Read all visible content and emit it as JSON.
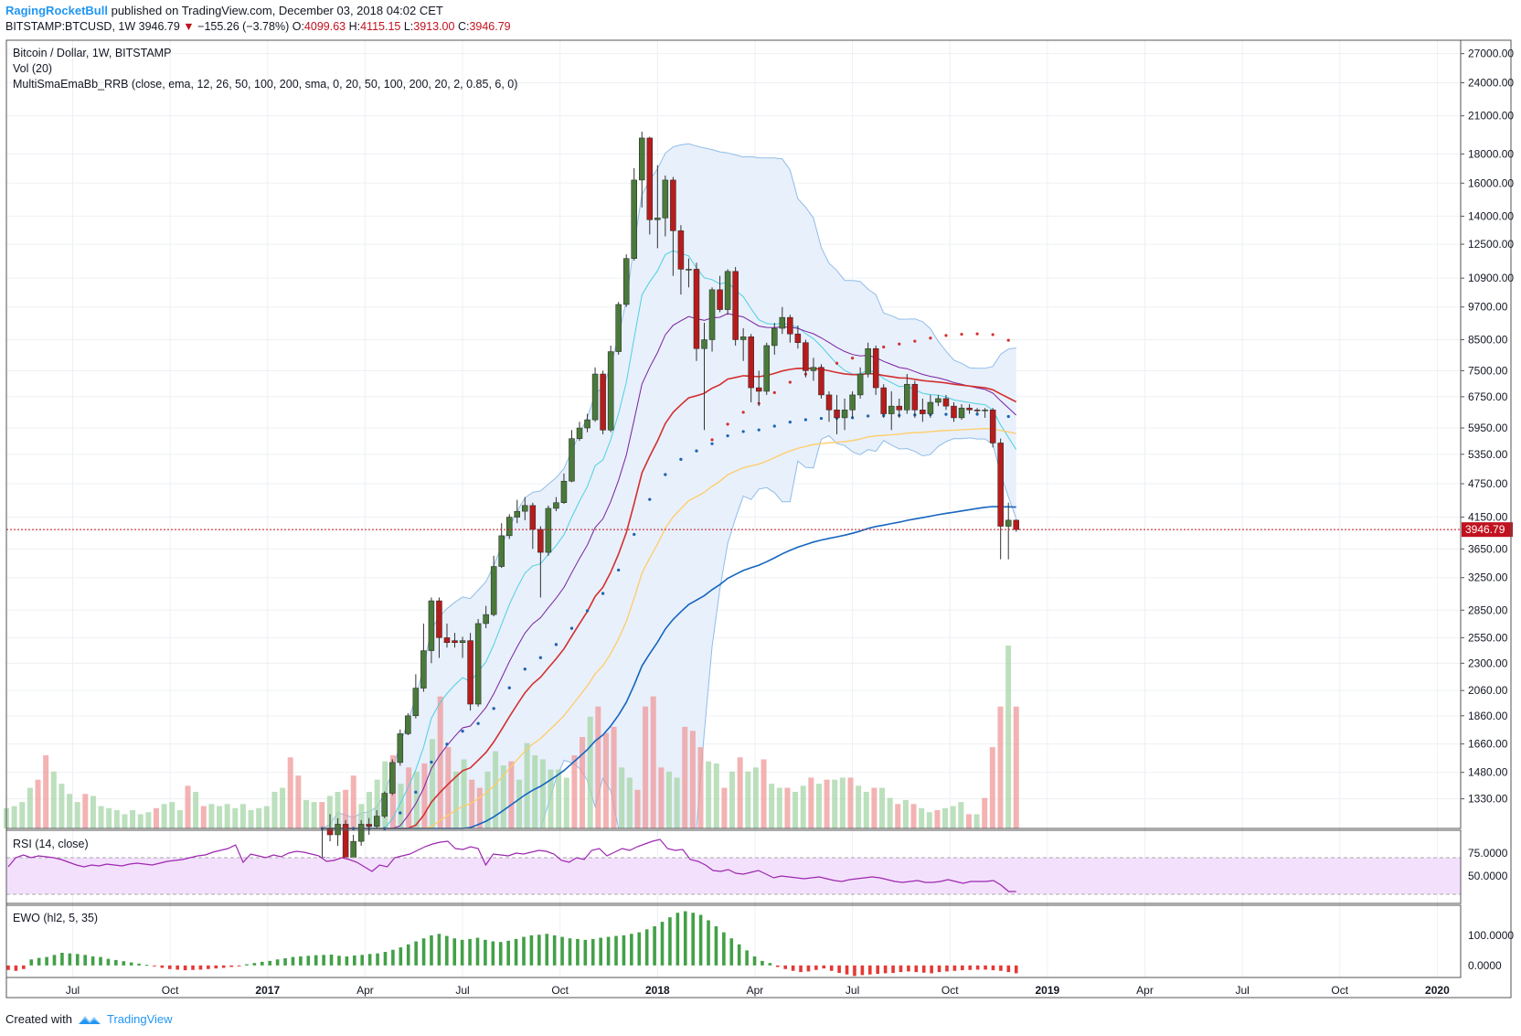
{
  "header": {
    "author": "RagingRocketBull",
    "published_text": "published on TradingView.com, December 03, 2018 04:02 CET",
    "symbol": "BITSTAMP:BTCUSD, 1W",
    "last_price": "3946.79",
    "change_arrow": "▼",
    "change": "−155.26 (−3.78%)",
    "o_label": "O:",
    "o_value": "4099.63",
    "h_label": "H:",
    "h_value": "4115.15",
    "l_label": "L:",
    "l_value": "3913.00",
    "c_label": "C:",
    "c_value": "3946.79"
  },
  "legend": {
    "line1": "Bitcoin / Dollar, 1W, BITSTAMP",
    "line2": "Vol (20)",
    "line3": "MultiSmaEmaBb_RRB (close, ema, 12, 26, 50, 100, 200, sma, 0, 20, 50, 100, 200, 20, 2, 0.85, 6, 0)"
  },
  "rsi_label": "RSI (14, close)",
  "ewo_label": "EWO (hl2, 5, 35)",
  "footer": {
    "created_with": "Created with",
    "brand": "TradingView"
  },
  "colors": {
    "up": "#4a7a3a",
    "down": "#b71c1c",
    "vol_up": "#a5d6a7",
    "vol_down": "#ef9a9a",
    "ema12": "#4dd0e1",
    "ema26": "#7b1fa2",
    "ema50": "#d32f2f",
    "ema100": "#ffcc66",
    "ema200": "#1565c0",
    "bb": "#90bde8",
    "bb_fill": "#e8f0fb",
    "rsi": "#9c27b0",
    "rsi_band": "#f3e0fc",
    "ewo_pos": "#43a047",
    "ewo_neg": "#e53935",
    "price_line": "#c1121f"
  },
  "chart_data": [
    {
      "type": "candlestick",
      "title": "Bitcoin / Dollar, 1W, BITSTAMP",
      "scale": "log",
      "ylim": [
        1180,
        28500
      ],
      "y_ticks": [
        "27000.00",
        "24000.00",
        "21000.00",
        "18000.00",
        "16000.00",
        "14000.00",
        "12500.00",
        "10900.00",
        "9700.00",
        "8500.00",
        "7500.00",
        "6750.00",
        "5950.00",
        "5350.00",
        "4750.00",
        "4150.00",
        "3650.00",
        "3250.00",
        "2850.00",
        "2550.00",
        "2300.00",
        "2060.00",
        "1860.00",
        "1660.00",
        "1480.00",
        "1330.00"
      ],
      "x_ticks": [
        {
          "label": "Jul",
          "t": 2016.5
        },
        {
          "label": "Oct",
          "t": 2016.75
        },
        {
          "label": "2017",
          "t": 2017.0
        },
        {
          "label": "Apr",
          "t": 2017.25
        },
        {
          "label": "Jul",
          "t": 2017.5
        },
        {
          "label": "Oct",
          "t": 2017.75
        },
        {
          "label": "2018",
          "t": 2018.0
        },
        {
          "label": "Apr",
          "t": 2018.25
        },
        {
          "label": "Jul",
          "t": 2018.5
        },
        {
          "label": "Oct",
          "t": 2018.75
        },
        {
          "label": "2019",
          "t": 2019.0
        },
        {
          "label": "Apr",
          "t": 2019.25
        },
        {
          "label": "Jul",
          "t": 2019.5
        },
        {
          "label": "Oct",
          "t": 2019.75
        },
        {
          "label": "2020",
          "t": 2020.0
        }
      ],
      "last_price": 3946.79,
      "last_price_label": "3946.79",
      "candles": [
        [
          2017.14,
          1000,
          1050,
          980,
          1180
        ],
        [
          2017.16,
          1180,
          1150,
          1120,
          1250
        ],
        [
          2017.18,
          1150,
          1200,
          1100,
          1230
        ],
        [
          2017.2,
          1200,
          1040,
          1000,
          1220
        ],
        [
          2017.22,
          1040,
          1120,
          1000,
          1150
        ],
        [
          2017.24,
          1120,
          1200,
          1100,
          1220
        ],
        [
          2017.26,
          1200,
          1190,
          1150,
          1230
        ],
        [
          2017.28,
          1190,
          1240,
          1180,
          1270
        ],
        [
          2017.3,
          1240,
          1360,
          1230,
          1370
        ],
        [
          2017.32,
          1360,
          1540,
          1350,
          1560
        ],
        [
          2017.34,
          1540,
          1730,
          1520,
          1760
        ],
        [
          2017.36,
          1730,
          1860,
          1720,
          1880
        ],
        [
          2017.38,
          1860,
          2080,
          1840,
          2200
        ],
        [
          2017.4,
          2080,
          2420,
          2050,
          2700
        ],
        [
          2017.42,
          2420,
          2960,
          2300,
          3000
        ],
        [
          2017.44,
          2960,
          2550,
          2350,
          3000
        ],
        [
          2017.46,
          2550,
          2500,
          2450,
          2700
        ],
        [
          2017.48,
          2520,
          2500,
          2450,
          2600
        ],
        [
          2017.5,
          2500,
          2520,
          2350,
          2560
        ],
        [
          2017.52,
          2520,
          1950,
          1900,
          2600
        ],
        [
          2017.54,
          1950,
          2700,
          1930,
          2750
        ],
        [
          2017.56,
          2700,
          2800,
          2650,
          2900
        ],
        [
          2017.58,
          2800,
          3400,
          2780,
          3550
        ],
        [
          2017.6,
          3400,
          3850,
          3380,
          4050
        ],
        [
          2017.62,
          3850,
          4150,
          3800,
          4200
        ],
        [
          2017.64,
          4150,
          4250,
          4050,
          4450
        ],
        [
          2017.66,
          4250,
          4350,
          4100,
          4500
        ],
        [
          2017.68,
          4350,
          3950,
          3650,
          4400
        ],
        [
          2017.7,
          3950,
          3600,
          3000,
          4000
        ],
        [
          2017.72,
          3600,
          4300,
          3550,
          4350
        ],
        [
          2017.74,
          4300,
          4400,
          4250,
          4500
        ],
        [
          2017.76,
          4400,
          4800,
          4380,
          4950
        ],
        [
          2017.78,
          4800,
          5700,
          4780,
          5900
        ],
        [
          2017.8,
          5700,
          5950,
          5650,
          6100
        ],
        [
          2017.82,
          5950,
          6150,
          5850,
          6300
        ],
        [
          2017.84,
          6150,
          7400,
          6100,
          7600
        ],
        [
          2017.86,
          7400,
          5900,
          5800,
          7500
        ],
        [
          2017.88,
          5900,
          8100,
          5850,
          8300
        ],
        [
          2017.9,
          8100,
          9800,
          8000,
          9900
        ],
        [
          2017.92,
          9800,
          11800,
          9700,
          12000
        ],
        [
          2017.94,
          11800,
          16200,
          11700,
          17000
        ],
        [
          2017.96,
          16200,
          19200,
          14500,
          19700
        ],
        [
          2017.98,
          19200,
          13800,
          13000,
          19300
        ],
        [
          2018.0,
          13800,
          13900,
          12300,
          17200
        ],
        [
          2018.02,
          13900,
          16200,
          12900,
          16500
        ],
        [
          2018.04,
          16200,
          13200,
          11000,
          16400
        ],
        [
          2018.06,
          13200,
          11300,
          10200,
          13500
        ],
        [
          2018.08,
          11300,
          11300,
          10500,
          11800
        ],
        [
          2018.1,
          11300,
          8200,
          7800,
          11600
        ],
        [
          2018.12,
          8200,
          8500,
          5900,
          9100
        ],
        [
          2018.14,
          8500,
          10400,
          8100,
          10500
        ],
        [
          2018.16,
          10400,
          9600,
          9500,
          11000
        ],
        [
          2018.18,
          9600,
          11200,
          9400,
          11300
        ],
        [
          2018.2,
          11200,
          8500,
          8300,
          11400
        ],
        [
          2018.22,
          8500,
          8600,
          7800,
          8900
        ],
        [
          2018.24,
          8600,
          7000,
          6600,
          8700
        ],
        [
          2018.26,
          7000,
          6900,
          6500,
          7500
        ],
        [
          2018.28,
          6900,
          8300,
          6800,
          8400
        ],
        [
          2018.3,
          8300,
          8900,
          8000,
          9100
        ],
        [
          2018.32,
          8900,
          9300,
          8700,
          9700
        ],
        [
          2018.34,
          9300,
          8700,
          8400,
          9400
        ],
        [
          2018.36,
          8700,
          8400,
          8200,
          9000
        ],
        [
          2018.38,
          8400,
          7500,
          7300,
          8500
        ],
        [
          2018.4,
          7500,
          7600,
          7200,
          7900
        ],
        [
          2018.42,
          7600,
          6800,
          6700,
          7700
        ],
        [
          2018.44,
          6800,
          6400,
          6100,
          6900
        ],
        [
          2018.46,
          6400,
          6200,
          5800,
          6800
        ],
        [
          2018.48,
          6200,
          6400,
          5900,
          6700
        ],
        [
          2018.5,
          6400,
          6800,
          6200,
          6900
        ],
        [
          2018.52,
          6800,
          7400,
          6700,
          7600
        ],
        [
          2018.54,
          7400,
          8200,
          7300,
          8400
        ],
        [
          2018.56,
          8200,
          7000,
          6800,
          8300
        ],
        [
          2018.58,
          7000,
          6300,
          6200,
          7100
        ],
        [
          2018.6,
          6300,
          6500,
          5900,
          6900
        ],
        [
          2018.62,
          6500,
          6400,
          6200,
          6700
        ],
        [
          2018.64,
          6400,
          7100,
          6300,
          7400
        ],
        [
          2018.66,
          7100,
          6400,
          6200,
          7200
        ],
        [
          2018.68,
          6400,
          6300,
          6100,
          6700
        ],
        [
          2018.7,
          6300,
          6600,
          6200,
          6800
        ],
        [
          2018.72,
          6600,
          6700,
          6500,
          6800
        ],
        [
          2018.74,
          6700,
          6500,
          6400,
          6800
        ],
        [
          2018.76,
          6500,
          6200,
          6100,
          6600
        ],
        [
          2018.78,
          6200,
          6450,
          6150,
          6550
        ],
        [
          2018.8,
          6450,
          6400,
          6300,
          6550
        ],
        [
          2018.82,
          6400,
          6380,
          6300,
          6450
        ],
        [
          2018.84,
          6380,
          6400,
          6200,
          6450
        ],
        [
          2018.86,
          6400,
          5600,
          5500,
          6450
        ],
        [
          2018.88,
          5600,
          4000,
          3500,
          5700
        ],
        [
          2018.9,
          4000,
          4100,
          3500,
          4400
        ],
        [
          2018.92,
          4099.63,
          3946.79,
          3913,
          4115.15
        ]
      ]
    },
    {
      "type": "bar",
      "title": "Vol (20)",
      "values": [
        10,
        11,
        13,
        20,
        24,
        36,
        28,
        22,
        17,
        13,
        17,
        16,
        11,
        10,
        9,
        7,
        9,
        7,
        8,
        10,
        12,
        13,
        9,
        21,
        18,
        11,
        12,
        11,
        12,
        10,
        12,
        9,
        10,
        11,
        18,
        20,
        35,
        26,
        14,
        13,
        13,
        16,
        18,
        19,
        26,
        12,
        18,
        24,
        33,
        36,
        22,
        30,
        28,
        32,
        44,
        65,
        40,
        28,
        34,
        24,
        20,
        28,
        38,
        31,
        33,
        24,
        42,
        36,
        34,
        29,
        29,
        25,
        36,
        45,
        55,
        60,
        47,
        50,
        30,
        25,
        19,
        60,
        65,
        30,
        28,
        25,
        50,
        48,
        40,
        33,
        32,
        20,
        28,
        35,
        28,
        30,
        34,
        22,
        20,
        20,
        18,
        21,
        25,
        22,
        24,
        24,
        25,
        25,
        21,
        18,
        20,
        20,
        15,
        12,
        14,
        12,
        10,
        8,
        9,
        10,
        11,
        13,
        7,
        7,
        15,
        40,
        60,
        90,
        60
      ],
      "up_flags": [
        1,
        1,
        1,
        1,
        0,
        0,
        1,
        1,
        1,
        1,
        0,
        1,
        1,
        1,
        1,
        1,
        1,
        1,
        1,
        0,
        1,
        1,
        1,
        0,
        1,
        0,
        1,
        1,
        1,
        1,
        1,
        1,
        1,
        1,
        1,
        1,
        0,
        0,
        1,
        1,
        0,
        1,
        1,
        0,
        0,
        1,
        1,
        1,
        1,
        0,
        1,
        0,
        1,
        0,
        1,
        0,
        0,
        1,
        1,
        0,
        0,
        1,
        1,
        1,
        0,
        1,
        1,
        1,
        1,
        1,
        1,
        1,
        0,
        0,
        1,
        0,
        0,
        0,
        1,
        1,
        0,
        0,
        0,
        0,
        1,
        1,
        0,
        0,
        0,
        1,
        1,
        0,
        1,
        0,
        1,
        1,
        0,
        1,
        1,
        0,
        1,
        1,
        0,
        1,
        0,
        1,
        1,
        0,
        1,
        1,
        0,
        1,
        1,
        0,
        1,
        0,
        1,
        1,
        0,
        1,
        1,
        1,
        0,
        1,
        0,
        0,
        0,
        1,
        0
      ]
    },
    {
      "type": "line",
      "title": "RSI (14, close)",
      "y_ticks": [
        "75.0000",
        "50.0000"
      ],
      "ylim": [
        20,
        100
      ],
      "values": [
        60,
        70,
        73,
        70,
        72,
        71,
        70,
        68,
        65,
        62,
        60,
        62,
        61,
        63,
        62,
        61,
        63,
        64,
        63,
        62,
        64,
        66,
        67,
        68,
        70,
        72,
        73,
        76,
        78,
        80,
        84,
        65,
        74,
        72,
        70,
        73,
        71,
        75,
        77,
        76,
        74,
        72,
        66,
        67,
        70,
        68,
        65,
        60,
        55,
        62,
        60,
        70,
        72,
        74,
        78,
        82,
        85,
        87,
        88,
        80,
        79,
        82,
        80,
        62,
        74,
        73,
        72,
        75,
        74,
        76,
        78,
        77,
        74,
        67,
        65,
        70,
        68,
        78,
        80,
        72,
        76,
        80,
        78,
        82,
        85,
        88,
        90,
        80,
        78,
        79,
        68,
        66,
        62,
        56,
        55,
        57,
        53,
        52,
        54,
        56,
        52,
        48,
        50,
        49,
        48,
        47,
        48,
        49,
        47,
        45,
        44,
        46,
        47,
        48,
        49,
        48,
        46,
        44,
        43,
        44,
        45,
        43,
        43,
        44,
        46,
        44,
        42,
        44,
        44,
        44,
        45,
        40,
        33,
        33
      ],
      "band": [
        30,
        70
      ]
    },
    {
      "type": "bar",
      "title": "EWO (hl2, 5, 35)",
      "y_ticks": [
        "100.0000",
        "0.0000"
      ],
      "values": [
        -15,
        -18,
        -12,
        20,
        25,
        28,
        35,
        42,
        40,
        38,
        35,
        30,
        28,
        22,
        18,
        14,
        10,
        6,
        2,
        -3,
        -8,
        -12,
        -14,
        -16,
        -15,
        -14,
        -12,
        -10,
        -8,
        -5,
        -2,
        4,
        8,
        12,
        15,
        20,
        24,
        28,
        30,
        32,
        34,
        35,
        36,
        32,
        30,
        33,
        35,
        38,
        40,
        45,
        52,
        60,
        70,
        80,
        90,
        100,
        105,
        98,
        90,
        85,
        88,
        92,
        85,
        80,
        78,
        82,
        88,
        95,
        100,
        102,
        105,
        100,
        95,
        90,
        88,
        85,
        88,
        92,
        95,
        98,
        100,
        105,
        110,
        120,
        130,
        145,
        160,
        175,
        180,
        175,
        168,
        150,
        130,
        110,
        90,
        70,
        50,
        30,
        15,
        8,
        -5,
        -12,
        -18,
        -22,
        -20,
        -15,
        -10,
        -18,
        -25,
        -30,
        -35,
        -32,
        -30,
        -28,
        -26,
        -25,
        -22,
        -20,
        -22,
        -24,
        -26,
        -22,
        -20,
        -18,
        -16,
        -15,
        -14,
        -14,
        -16,
        -18,
        -22,
        -26
      ]
    }
  ]
}
